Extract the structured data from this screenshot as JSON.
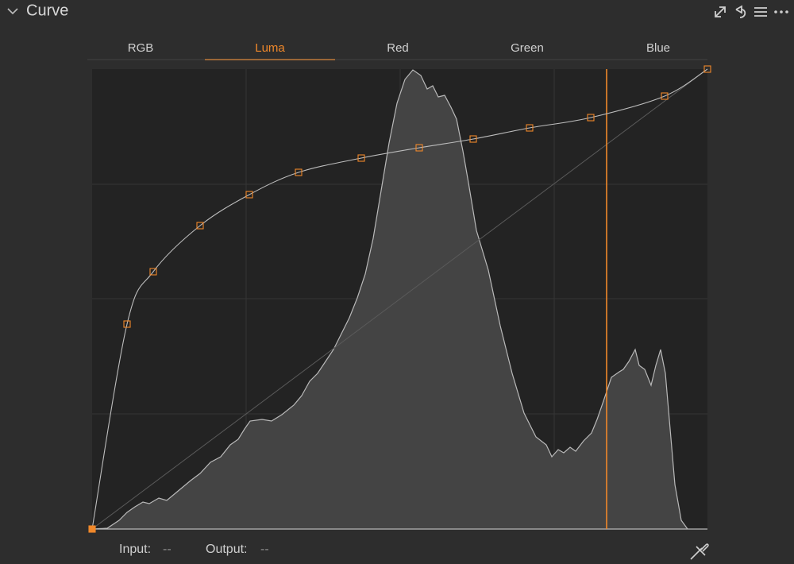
{
  "header": {
    "title": "Curve"
  },
  "tabs": [
    "RGB",
    "Luma",
    "Red",
    "Green",
    "Blue"
  ],
  "active_tab": 1,
  "footer": {
    "input_label": "Input:",
    "input_value": "--",
    "output_label": "Output:",
    "output_value": "--"
  }
}
